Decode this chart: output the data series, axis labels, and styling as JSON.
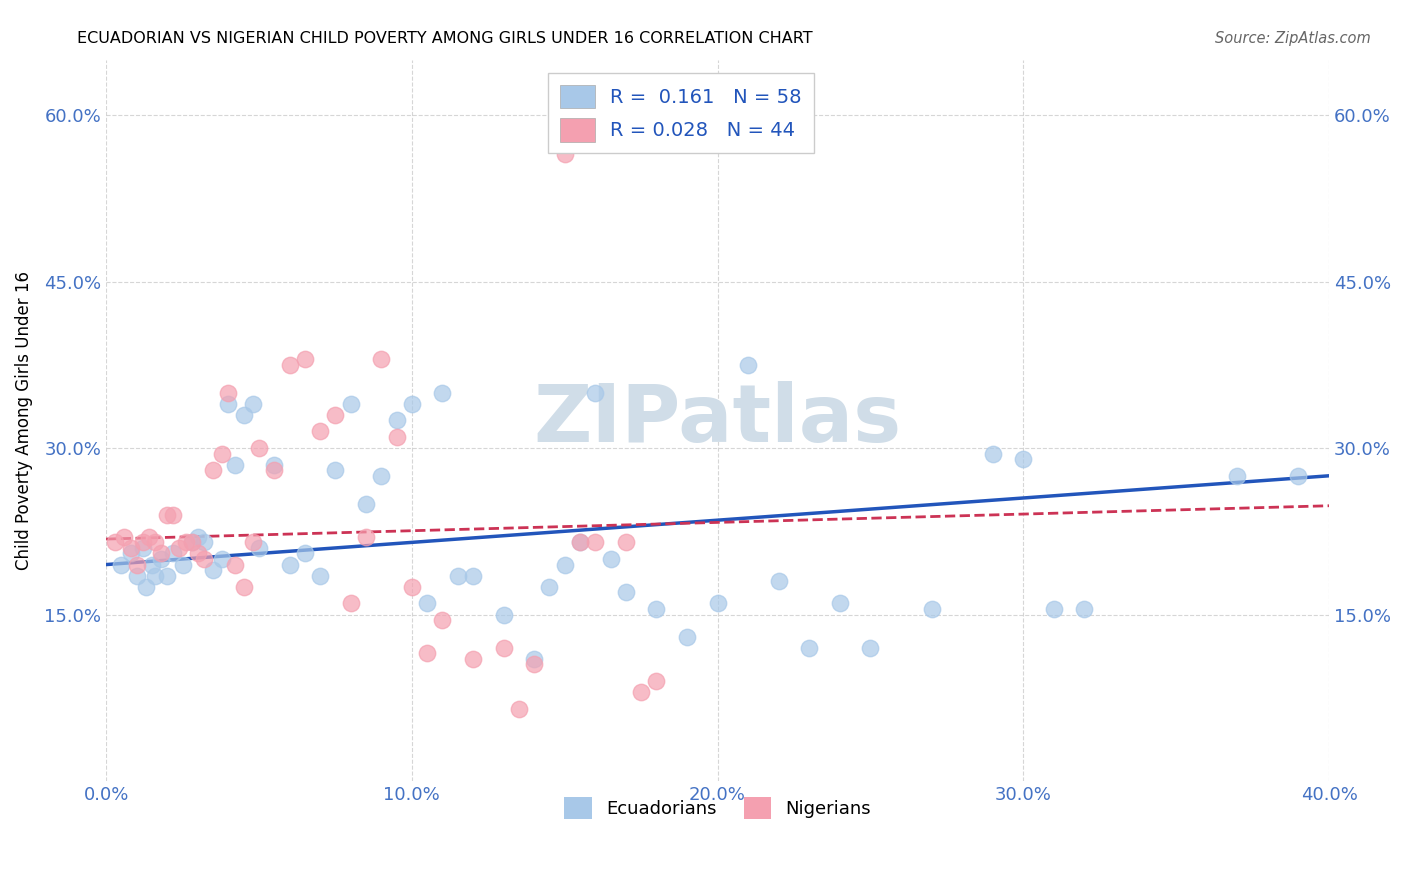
{
  "title": "ECUADORIAN VS NIGERIAN CHILD POVERTY AMONG GIRLS UNDER 16 CORRELATION CHART",
  "source": "Source: ZipAtlas.com",
  "ylabel": "Child Poverty Among Girls Under 16",
  "xlabel_ticks": [
    "0.0%",
    "10.0%",
    "20.0%",
    "30.0%",
    "40.0%"
  ],
  "ylabel_ticks": [
    "15.0%",
    "30.0%",
    "45.0%",
    "60.0%"
  ],
  "xlim": [
    0.0,
    0.4
  ],
  "ylim": [
    0.0,
    0.65
  ],
  "watermark": "ZIPatlas",
  "blue_color": "#a8c8e8",
  "pink_color": "#f4a0b0",
  "line_blue": "#2255bb",
  "line_pink": "#cc3355",
  "ecu_scatter_x": [
    0.005,
    0.008,
    0.01,
    0.012,
    0.013,
    0.015,
    0.016,
    0.018,
    0.02,
    0.022,
    0.025,
    0.028,
    0.03,
    0.032,
    0.035,
    0.038,
    0.04,
    0.042,
    0.045,
    0.048,
    0.05,
    0.055,
    0.06,
    0.065,
    0.07,
    0.075,
    0.08,
    0.085,
    0.09,
    0.095,
    0.1,
    0.105,
    0.11,
    0.115,
    0.12,
    0.13,
    0.14,
    0.145,
    0.15,
    0.155,
    0.16,
    0.165,
    0.17,
    0.18,
    0.19,
    0.2,
    0.21,
    0.22,
    0.23,
    0.24,
    0.25,
    0.27,
    0.29,
    0.3,
    0.31,
    0.32,
    0.37,
    0.39
  ],
  "ecu_scatter_y": [
    0.195,
    0.205,
    0.185,
    0.21,
    0.175,
    0.195,
    0.185,
    0.2,
    0.185,
    0.205,
    0.195,
    0.215,
    0.22,
    0.215,
    0.19,
    0.2,
    0.34,
    0.285,
    0.33,
    0.34,
    0.21,
    0.285,
    0.195,
    0.205,
    0.185,
    0.28,
    0.34,
    0.25,
    0.275,
    0.325,
    0.34,
    0.16,
    0.35,
    0.185,
    0.185,
    0.15,
    0.11,
    0.175,
    0.195,
    0.215,
    0.35,
    0.2,
    0.17,
    0.155,
    0.13,
    0.16,
    0.375,
    0.18,
    0.12,
    0.16,
    0.12,
    0.155,
    0.295,
    0.29,
    0.155,
    0.155,
    0.275,
    0.275
  ],
  "nig_scatter_x": [
    0.003,
    0.006,
    0.008,
    0.01,
    0.012,
    0.014,
    0.016,
    0.018,
    0.02,
    0.022,
    0.024,
    0.026,
    0.028,
    0.03,
    0.032,
    0.035,
    0.038,
    0.04,
    0.042,
    0.045,
    0.048,
    0.05,
    0.055,
    0.06,
    0.065,
    0.07,
    0.075,
    0.08,
    0.085,
    0.09,
    0.095,
    0.1,
    0.105,
    0.11,
    0.12,
    0.13,
    0.135,
    0.14,
    0.15,
    0.155,
    0.16,
    0.17,
    0.175,
    0.18
  ],
  "nig_scatter_y": [
    0.215,
    0.22,
    0.21,
    0.195,
    0.215,
    0.22,
    0.215,
    0.205,
    0.24,
    0.24,
    0.21,
    0.215,
    0.215,
    0.205,
    0.2,
    0.28,
    0.295,
    0.35,
    0.195,
    0.175,
    0.215,
    0.3,
    0.28,
    0.375,
    0.38,
    0.315,
    0.33,
    0.16,
    0.22,
    0.38,
    0.31,
    0.175,
    0.115,
    0.145,
    0.11,
    0.12,
    0.065,
    0.105,
    0.565,
    0.215,
    0.215,
    0.215,
    0.08,
    0.09
  ],
  "ecu_line_x": [
    0.0,
    0.4
  ],
  "ecu_line_y": [
    0.195,
    0.275
  ],
  "nig_line_x": [
    0.0,
    0.4
  ],
  "nig_line_y": [
    0.218,
    0.248
  ]
}
